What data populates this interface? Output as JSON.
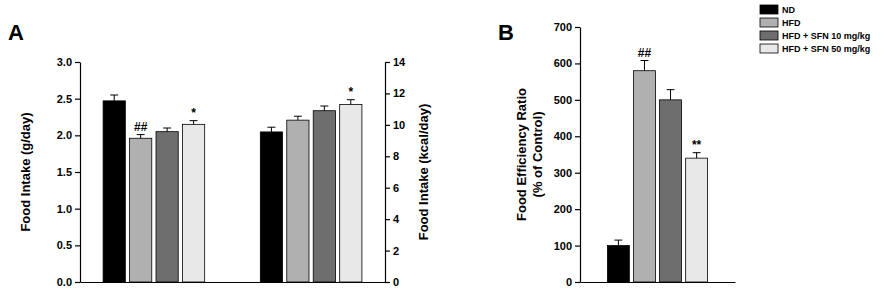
{
  "chart_data": [
    {
      "type": "bar",
      "title": "A",
      "categories": [
        null,
        null
      ],
      "y_label": "Food Intake (g/day)",
      "y2_label": "Food Intake (kcal/day)",
      "ylim": [
        0,
        3
      ],
      "yticks": [
        {
          "value": 0,
          "label": "0.0"
        },
        {
          "value": 0.5,
          "label": "0.5"
        },
        {
          "value": 1,
          "label": "1.0"
        },
        {
          "value": 1.5,
          "label": "1.5"
        },
        {
          "value": 2,
          "label": "2.0"
        },
        {
          "value": 2.5,
          "label": "2.5"
        },
        {
          "value": 3,
          "label": "3.0"
        }
      ],
      "y2lim": [
        0,
        14
      ],
      "y2ticks": [
        0,
        2,
        4,
        6,
        8,
        10,
        12,
        14
      ],
      "series": [
        {
          "color": "#000000",
          "values": [
            2.47,
            null
          ],
          "errors": [
            0.08,
            null
          ]
        },
        {
          "color": "#b0b0b0",
          "values": [
            1.96,
            null
          ],
          "errors": [
            0.05,
            null
          ],
          "annotations": [
            "##",
            null
          ]
        },
        {
          "color": "#6e6e6e",
          "values": [
            2.05,
            null
          ],
          "errors": [
            0.05,
            null
          ]
        },
        {
          "color": "#e8e8e8",
          "values": [
            2.15,
            null
          ],
          "errors": [
            0.05,
            null
          ],
          "annotations": [
            "*",
            null
          ]
        },
        {
          "color": "#000000",
          "axis": "y2",
          "values": [
            null,
            9.55
          ],
          "errors": [
            null,
            0.3
          ]
        },
        {
          "color": "#b0b0b0",
          "axis": "y2",
          "values": [
            null,
            10.3
          ],
          "errors": [
            null,
            0.25
          ]
        },
        {
          "color": "#6e6e6e",
          "axis": "y2",
          "values": [
            null,
            10.9
          ],
          "errors": [
            null,
            0.3
          ]
        },
        {
          "color": "#e8e8e8",
          "axis": "y2",
          "values": [
            null,
            11.3
          ],
          "errors": [
            null,
            0.3
          ],
          "annotations": [
            null,
            "*"
          ]
        }
      ]
    },
    {
      "type": "bar",
      "title": "B",
      "categories": [
        null
      ],
      "y_label": [
        "Food Efficiency Ratio",
        "(% of Control)"
      ],
      "ylim": [
        0,
        700
      ],
      "yticks": [
        0,
        100,
        200,
        300,
        400,
        500,
        600,
        700
      ],
      "legend": "top-right",
      "series": [
        {
          "name": "ND",
          "color": "#000000",
          "values": [
            100
          ],
          "errors": [
            15
          ]
        },
        {
          "name": "HFD",
          "color": "#b0b0b0",
          "values": [
            580
          ],
          "errors": [
            28
          ],
          "annotations": [
            "##"
          ]
        },
        {
          "name": "HFD + SFN 10 mg/kg",
          "color": "#6e6e6e",
          "values": [
            500
          ],
          "errors": [
            28
          ]
        },
        {
          "name": "HFD + SFN 50 mg/kg",
          "color": "#e8e8e8",
          "values": [
            340
          ],
          "errors": [
            15
          ],
          "annotations": [
            "**"
          ]
        }
      ]
    }
  ]
}
